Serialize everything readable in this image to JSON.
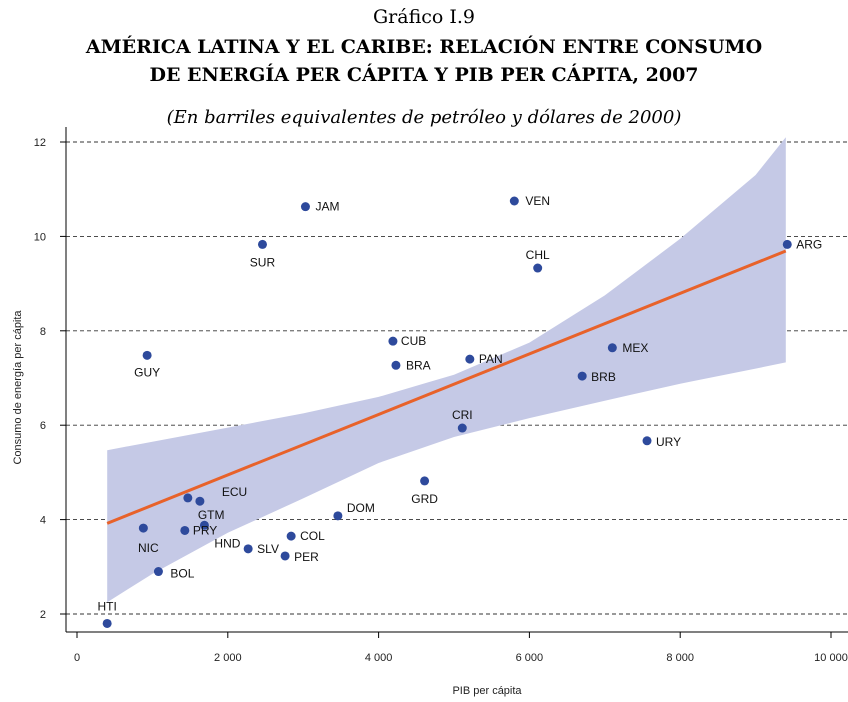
{
  "header": {
    "figure_number": "Gráfico I.9",
    "title_line1": "AMÉRICA LATINA Y EL CARIBE: RELACIÓN ENTRE CONSUMO",
    "title_line2": "DE ENERGÍA PER CÁPITA Y PIB PER CÁPITA, 2007",
    "subtitle": "(En barriles equivalentes de petróleo y dólares de 2000)"
  },
  "chart_data": {
    "type": "scatter",
    "xlabel": "PIB per cápita",
    "ylabel": "Consumo de energía per cápita",
    "xlim": [
      0,
      10000
    ],
    "ylim": [
      1.6,
      12.4
    ],
    "xticks": [
      0,
      2000,
      4000,
      6000,
      8000,
      10000
    ],
    "xtick_labels": [
      "0",
      "2 000",
      "4 000",
      "6 000",
      "8 000",
      "10 000"
    ],
    "yticks": [
      2,
      4,
      6,
      8,
      10,
      12
    ],
    "ytick_labels": [
      "2",
      "4",
      "6",
      "8",
      "10",
      "12"
    ],
    "grid": "horizontal dashed",
    "colors": {
      "points": "#2e4a9c",
      "fit_line": "#e8622a",
      "confidence_band": "#c5c9e6"
    },
    "points": [
      {
        "label": "HTI",
        "x": 400,
        "y": 1.8
      },
      {
        "label": "BOL",
        "x": 1080,
        "y": 2.9
      },
      {
        "label": "NIC",
        "x": 880,
        "y": 3.82
      },
      {
        "label": "PRY",
        "x": 1430,
        "y": 3.77
      },
      {
        "label": "HND",
        "x": 1690,
        "y": 3.88
      },
      {
        "label": "GTM",
        "x": 1470,
        "y": 4.46
      },
      {
        "label": "ECU",
        "x": 1630,
        "y": 4.39
      },
      {
        "label": "GUY",
        "x": 930,
        "y": 7.48
      },
      {
        "label": "SLV",
        "x": 2270,
        "y": 3.38
      },
      {
        "label": "PER",
        "x": 2760,
        "y": 3.23
      },
      {
        "label": "COL",
        "x": 2840,
        "y": 3.65
      },
      {
        "label": "SUR",
        "x": 2460,
        "y": 9.83
      },
      {
        "label": "JAM",
        "x": 3030,
        "y": 10.63
      },
      {
        "label": "DOM",
        "x": 3460,
        "y": 4.08
      },
      {
        "label": "CUB",
        "x": 4190,
        "y": 7.78
      },
      {
        "label": "BRA",
        "x": 4230,
        "y": 7.27
      },
      {
        "label": "GRD",
        "x": 4610,
        "y": 4.82
      },
      {
        "label": "CRI",
        "x": 5110,
        "y": 5.94
      },
      {
        "label": "PAN",
        "x": 5210,
        "y": 7.4
      },
      {
        "label": "VEN",
        "x": 5800,
        "y": 10.75
      },
      {
        "label": "CHL",
        "x": 6110,
        "y": 9.33
      },
      {
        "label": "BRB",
        "x": 6700,
        "y": 7.04
      },
      {
        "label": "MEX",
        "x": 7100,
        "y": 7.64
      },
      {
        "label": "URY",
        "x": 7560,
        "y": 5.67
      },
      {
        "label": "ARG",
        "x": 9420,
        "y": 9.83
      }
    ],
    "fit_line": {
      "x": [
        400,
        9400
      ],
      "y": [
        3.92,
        9.69
      ]
    },
    "band_upper": {
      "x": [
        400,
        1000,
        2000,
        3000,
        4000,
        5000,
        6000,
        7000,
        8000,
        9000,
        9400
      ],
      "y": [
        5.47,
        5.65,
        5.95,
        6.25,
        6.6,
        7.07,
        7.75,
        8.75,
        9.95,
        11.3,
        12.1
      ]
    },
    "band_lower": {
      "x": [
        400,
        1000,
        2000,
        3000,
        4000,
        5000,
        6000,
        7000,
        8000,
        9000,
        9400
      ],
      "y": [
        2.25,
        2.85,
        3.72,
        4.45,
        5.2,
        5.75,
        6.15,
        6.52,
        6.88,
        7.2,
        7.33
      ]
    }
  }
}
